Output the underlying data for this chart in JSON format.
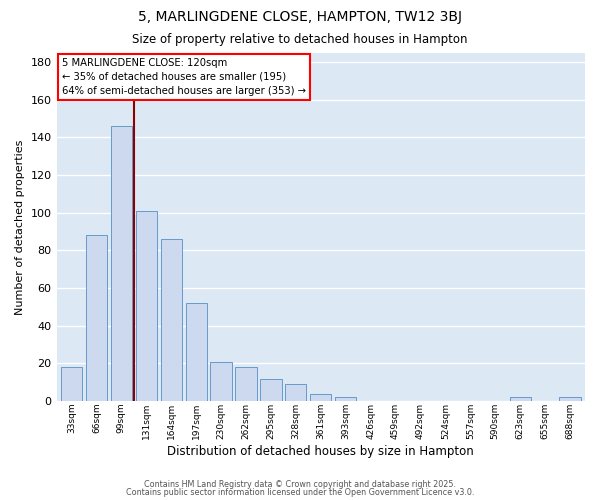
{
  "title": "5, MARLINGDENE CLOSE, HAMPTON, TW12 3BJ",
  "subtitle": "Size of property relative to detached houses in Hampton",
  "xlabel": "Distribution of detached houses by size in Hampton",
  "ylabel": "Number of detached properties",
  "bar_color": "#ccd9ee",
  "bar_edge_color": "#6699cc",
  "bg_color": "#dde8f5",
  "grid_color": "#c0ccdd",
  "categories": [
    "33sqm",
    "66sqm",
    "99sqm",
    "131sqm",
    "164sqm",
    "197sqm",
    "230sqm",
    "262sqm",
    "295sqm",
    "328sqm",
    "361sqm",
    "393sqm",
    "426sqm",
    "459sqm",
    "492sqm",
    "524sqm",
    "557sqm",
    "590sqm",
    "623sqm",
    "655sqm",
    "688sqm"
  ],
  "values": [
    18,
    88,
    146,
    101,
    86,
    52,
    21,
    18,
    12,
    9,
    4,
    2,
    0,
    0,
    0,
    0,
    0,
    0,
    2,
    0,
    2
  ],
  "ylim": [
    0,
    185
  ],
  "yticks": [
    0,
    20,
    40,
    60,
    80,
    100,
    120,
    140,
    160,
    180
  ],
  "red_line_bar_index": 2,
  "annotation_title": "5 MARLINGDENE CLOSE: 120sqm",
  "annotation_line1": "← 35% of detached houses are smaller (195)",
  "annotation_line2": "64% of semi-detached houses are larger (353) →",
  "footer1": "Contains HM Land Registry data © Crown copyright and database right 2025.",
  "footer2": "Contains public sector information licensed under the Open Government Licence v3.0."
}
